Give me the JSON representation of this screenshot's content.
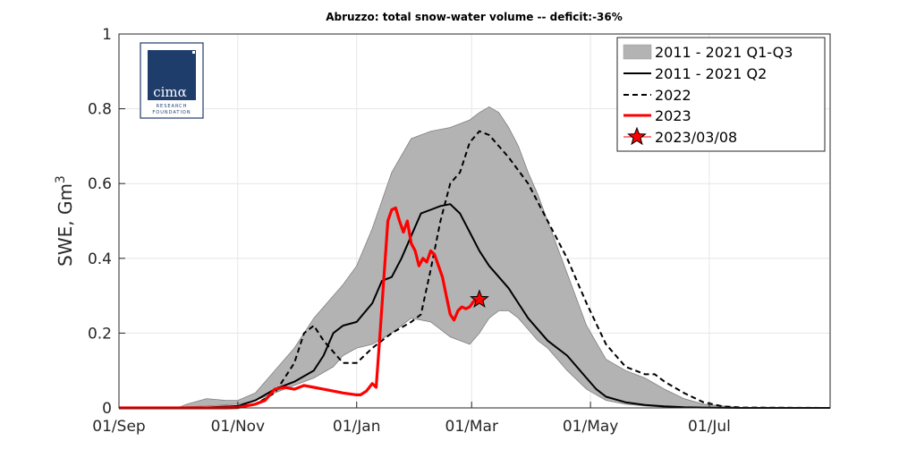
{
  "chart_data": {
    "type": "area",
    "title": "Abruzzo: total snow-water volume -- deficit:-36%",
    "xlabel": "",
    "ylabel": "SWE, Gm",
    "ylabel_sup": "3",
    "x_unit": "day of hydrological year (0 = 01/Sep)",
    "xlim": [
      0,
      365
    ],
    "ylim": [
      0,
      1
    ],
    "xticks": [
      {
        "x": 0,
        "label": "01/Sep"
      },
      {
        "x": 61,
        "label": "01/Nov"
      },
      {
        "x": 122,
        "label": "01/Jan"
      },
      {
        "x": 181,
        "label": "01/Mar"
      },
      {
        "x": 242,
        "label": "01/May"
      },
      {
        "x": 303,
        "label": "01/Jul"
      }
    ],
    "yticks": [
      {
        "y": 0,
        "label": "0"
      },
      {
        "y": 0.2,
        "label": "0.2"
      },
      {
        "y": 0.4,
        "label": "0.4"
      },
      {
        "y": 0.6,
        "label": "0.6"
      },
      {
        "y": 0.8,
        "label": "0.8"
      },
      {
        "y": 1,
        "label": "1"
      }
    ],
    "grid": true,
    "legend_position": "top-right",
    "series": [
      {
        "name": "2011 - 2021 Q1-Q3",
        "style": "band",
        "color": "#b3b3b3",
        "x": [
          0,
          30,
          35,
          45,
          55,
          61,
          70,
          80,
          90,
          100,
          110,
          115,
          122,
          130,
          140,
          150,
          160,
          165,
          170,
          180,
          185,
          190,
          195,
          200,
          205,
          210,
          215,
          220,
          230,
          240,
          250,
          260,
          270,
          280,
          290,
          300,
          310,
          320,
          330,
          345,
          365
        ],
        "lower": [
          0,
          0,
          0.003,
          0.005,
          0.008,
          0.01,
          0.02,
          0.04,
          0.06,
          0.08,
          0.11,
          0.14,
          0.16,
          0.17,
          0.2,
          0.24,
          0.23,
          0.21,
          0.19,
          0.17,
          0.2,
          0.24,
          0.26,
          0.26,
          0.24,
          0.21,
          0.18,
          0.16,
          0.1,
          0.05,
          0.02,
          0.01,
          0.005,
          0.002,
          0.001,
          0,
          0,
          0,
          0,
          0,
          0
        ],
        "upper": [
          0,
          0,
          0.01,
          0.025,
          0.02,
          0.02,
          0.04,
          0.1,
          0.16,
          0.24,
          0.3,
          0.33,
          0.38,
          0.48,
          0.63,
          0.72,
          0.74,
          0.745,
          0.75,
          0.77,
          0.79,
          0.805,
          0.79,
          0.75,
          0.7,
          0.63,
          0.57,
          0.5,
          0.36,
          0.22,
          0.13,
          0.1,
          0.08,
          0.05,
          0.025,
          0.01,
          0.005,
          0,
          0,
          0,
          0
        ]
      },
      {
        "name": "2011 - 2021 Q2",
        "style": "solid",
        "color": "#000000",
        "x": [
          0,
          40,
          61,
          70,
          80,
          90,
          100,
          105,
          110,
          115,
          122,
          130,
          135,
          140,
          145,
          150,
          155,
          160,
          165,
          170,
          175,
          180,
          185,
          190,
          195,
          200,
          205,
          210,
          220,
          230,
          240,
          245,
          250,
          260,
          270,
          280,
          290,
          300,
          320,
          365
        ],
        "values": [
          0,
          0,
          0.005,
          0.02,
          0.05,
          0.07,
          0.1,
          0.14,
          0.2,
          0.22,
          0.23,
          0.28,
          0.34,
          0.35,
          0.4,
          0.46,
          0.52,
          0.53,
          0.54,
          0.545,
          0.52,
          0.47,
          0.42,
          0.38,
          0.35,
          0.32,
          0.28,
          0.24,
          0.18,
          0.14,
          0.08,
          0.05,
          0.03,
          0.015,
          0.008,
          0.004,
          0.002,
          0.001,
          0,
          0
        ]
      },
      {
        "name": "2022",
        "style": "dashed",
        "color": "#000000",
        "x": [
          0,
          50,
          61,
          70,
          80,
          90,
          95,
          100,
          105,
          110,
          115,
          122,
          130,
          140,
          150,
          155,
          160,
          165,
          170,
          175,
          180,
          185,
          190,
          195,
          200,
          210,
          220,
          230,
          240,
          250,
          260,
          270,
          275,
          280,
          290,
          300,
          310,
          320,
          365
        ],
        "values": [
          0,
          0,
          0.003,
          0.01,
          0.04,
          0.12,
          0.2,
          0.22,
          0.18,
          0.15,
          0.12,
          0.12,
          0.16,
          0.2,
          0.23,
          0.25,
          0.37,
          0.5,
          0.6,
          0.63,
          0.71,
          0.74,
          0.73,
          0.7,
          0.67,
          0.6,
          0.5,
          0.4,
          0.28,
          0.17,
          0.11,
          0.09,
          0.09,
          0.07,
          0.04,
          0.015,
          0.004,
          0.001,
          0
        ]
      },
      {
        "name": "2023",
        "style": "solid-thick",
        "color": "#ff0000",
        "x": [
          0,
          55,
          61,
          70,
          75,
          80,
          85,
          90,
          95,
          100,
          105,
          110,
          115,
          122,
          124,
          127,
          130,
          132,
          134,
          136,
          138,
          140,
          142,
          144,
          146,
          148,
          150,
          152,
          154,
          156,
          158,
          160,
          162,
          164,
          166,
          168,
          170,
          172,
          174,
          176,
          178,
          180,
          182,
          185
        ],
        "values": [
          0,
          0,
          0.001,
          0.01,
          0.02,
          0.05,
          0.055,
          0.05,
          0.06,
          0.055,
          0.05,
          0.045,
          0.04,
          0.035,
          0.035,
          0.045,
          0.065,
          0.055,
          0.2,
          0.35,
          0.5,
          0.53,
          0.535,
          0.5,
          0.47,
          0.5,
          0.44,
          0.42,
          0.38,
          0.4,
          0.39,
          0.42,
          0.41,
          0.38,
          0.35,
          0.3,
          0.25,
          0.235,
          0.26,
          0.27,
          0.265,
          0.27,
          0.285,
          0.29
        ]
      }
    ],
    "markers": [
      {
        "name": "2023/03/08",
        "x": 185,
        "y": 0.29,
        "symbol": "star",
        "face_color": "#ff0000",
        "edge_color": "#000000"
      }
    ]
  },
  "logo": {
    "brand": "cimα",
    "subtitle_lines": [
      "RESEARCH",
      "FOUNDATION"
    ],
    "color": "#1f3d6b"
  }
}
